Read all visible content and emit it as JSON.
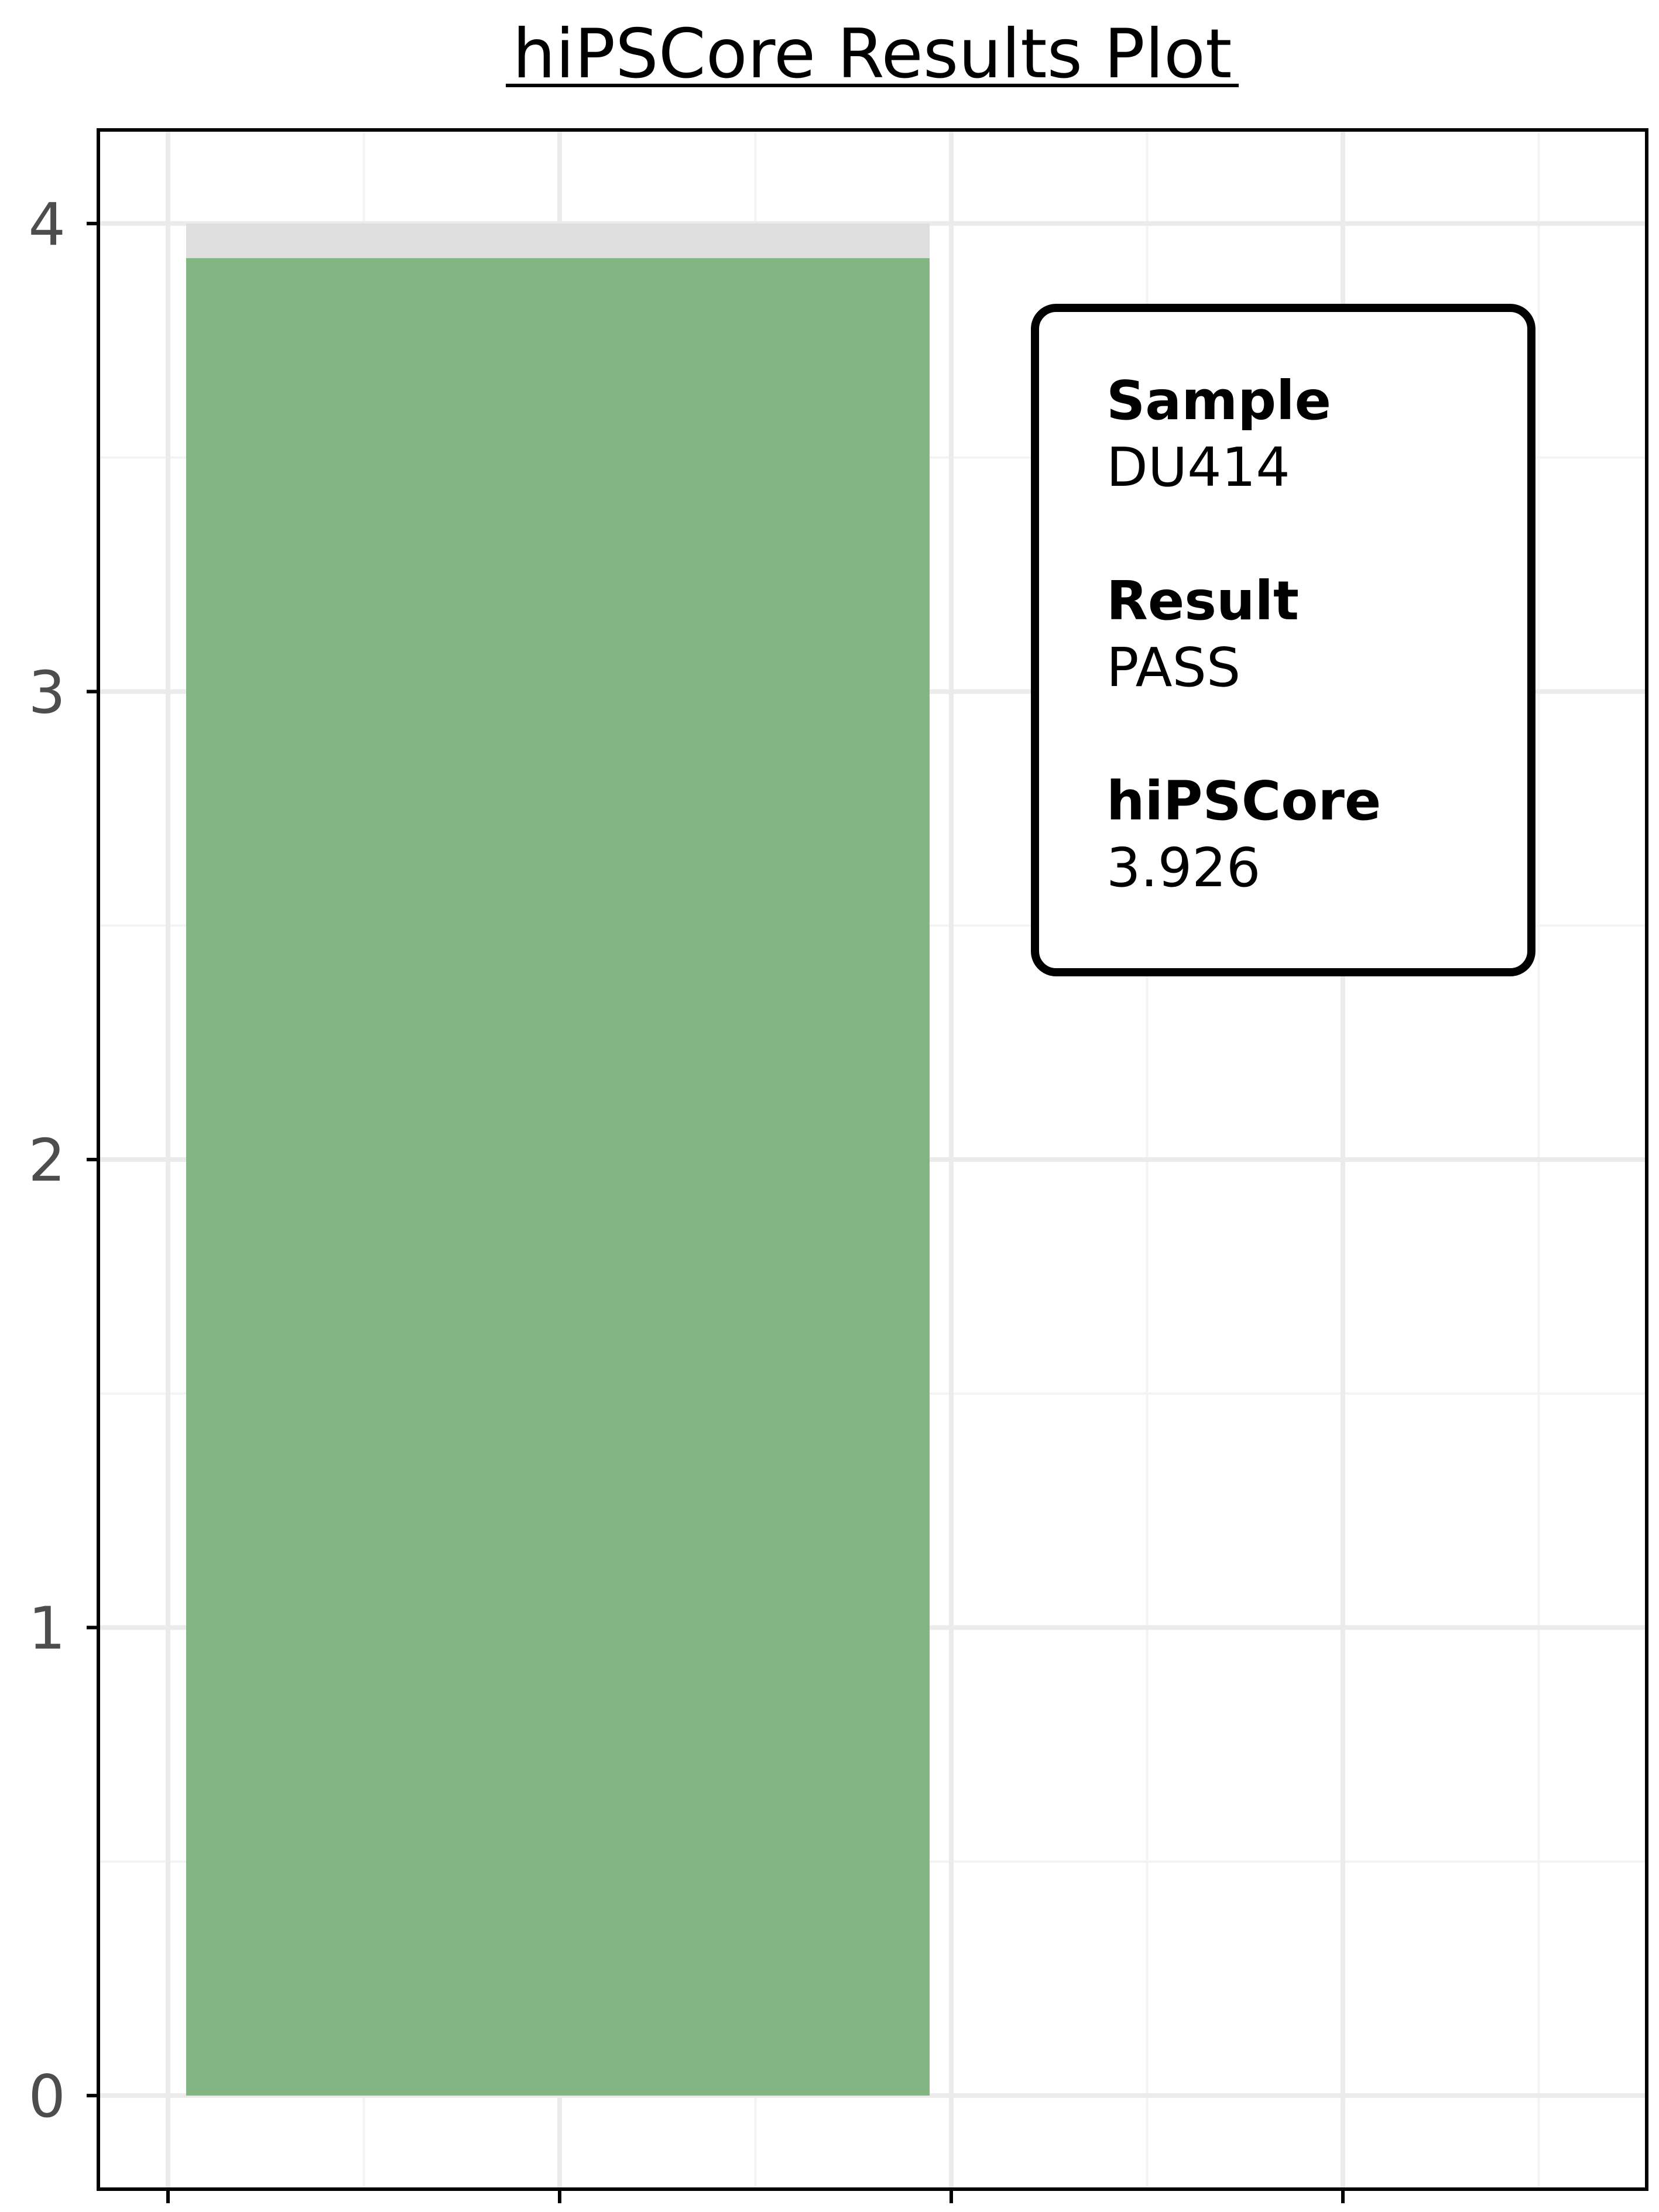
{
  "chart_data": {
    "type": "bar",
    "title": "hiPSCore Results Plot",
    "xlabel": "",
    "ylabel": "",
    "ylim": [
      -0.2,
      4.2
    ],
    "y_ticks": [
      "0",
      "1",
      "2",
      "3",
      "4"
    ],
    "x_tick_count": 4,
    "grid": true,
    "max_value": 4,
    "value": 3.926,
    "colors": {
      "bar": "#82b582",
      "max_bar": "#dedede",
      "pass": "#228b22",
      "grid_major": "#ebebeb",
      "grid_minor": "#f3f3f3",
      "axis": "#000000",
      "tick_text": "#4d4d4d"
    }
  },
  "info_box": {
    "sample_heading": "Sample",
    "sample_value": "DU414",
    "result_heading": "Result",
    "result_value": "PASS",
    "score_heading": "hiPSCore",
    "score_value": "3.926"
  }
}
